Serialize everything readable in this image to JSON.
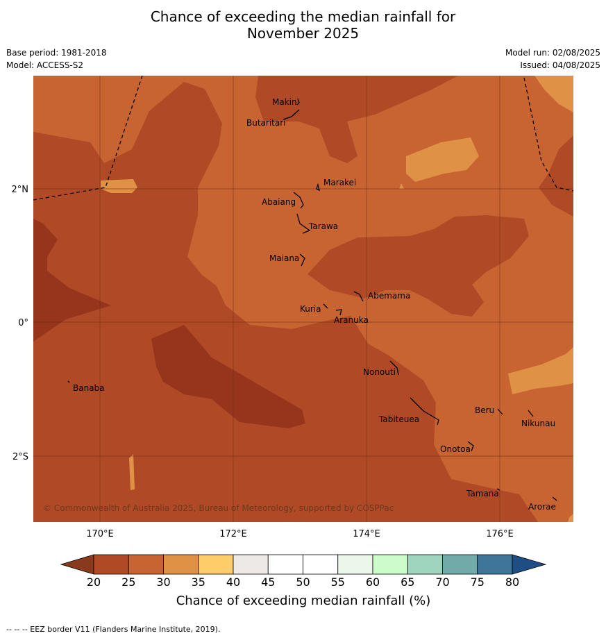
{
  "title": {
    "line1": "Chance of exceeding the median rainfall for",
    "line2": "November 2025"
  },
  "meta": {
    "base_period": "Base period: 1981-2018",
    "model": "Model: ACCESS-S2",
    "model_run": "Model run: 02/08/2025",
    "issued": "Issued: 04/08/2025"
  },
  "map": {
    "copyright": "© Commonwealth of Australia 2025, Bureau of Meteorology, supported by COSPPac",
    "x_ticks": [
      "170°E",
      "172°E",
      "174°E",
      "176°E"
    ],
    "y_ticks": [
      "2°N",
      "0°",
      "2°S"
    ],
    "places": {
      "makin": "Makin",
      "butaritari": "Butaritari",
      "marakei": "Marakei",
      "abaiang": "Abaiang",
      "tarawa": "Tarawa",
      "maiana": "Maiana",
      "abemama": "Abemama",
      "kuria": "Kuria",
      "aranuka": "Aranuka",
      "banaba": "Banaba",
      "nonouti": "Nonouti",
      "tabiteuea": "Tabiteuea",
      "beru": "Beru",
      "nikunau": "Nikunau",
      "onotoa": "Onotoa",
      "tamana": "Tamana",
      "arorae": "Arorae"
    }
  },
  "colorbar": {
    "title": "Chance of exceeding median rainfall (%)",
    "ticks": [
      "20",
      "25",
      "30",
      "35",
      "40",
      "45",
      "50",
      "55",
      "60",
      "65",
      "70",
      "75",
      "80"
    ],
    "colors": {
      "below20": "#8a3a1c",
      "b20_25": "#b04a26",
      "b25_30": "#c86332",
      "b30_35": "#df9246",
      "b35_40": "#fecd6a",
      "b40_45": "#ece9e6",
      "b45_50": "#ffffff",
      "b50_55": "#ffffff",
      "b55_60": "#eaf7ea",
      "b60_65": "#cbfcc9",
      "b65_70": "#9fd4bf",
      "b70_75": "#72aaa9",
      "b75_80": "#3f7599",
      "above80": "#1e4e84"
    }
  },
  "footer": "--  --  -- EEZ border V11 (Flanders Marine Institute, 2019)."
}
